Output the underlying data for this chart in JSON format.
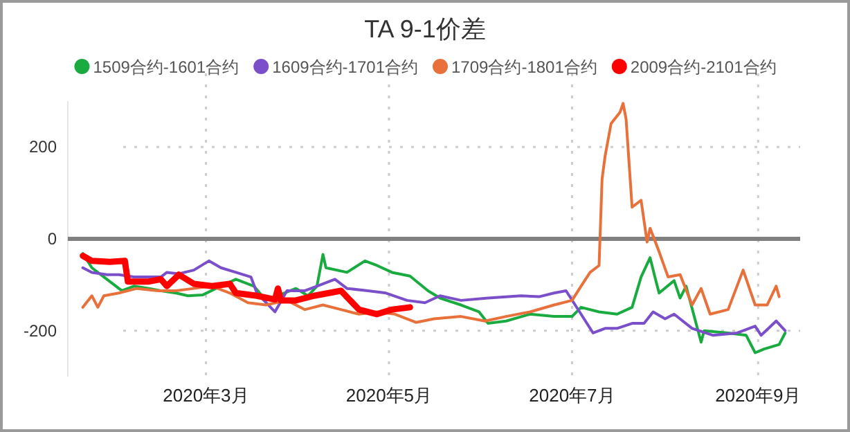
{
  "chart_data": {
    "type": "line",
    "title": "TA 9-1价差",
    "legend": "top",
    "grid": true,
    "xlim": [
      "2020-01-15",
      "2020-09-15"
    ],
    "xticks": [
      {
        "value": "2020-03-01",
        "label": "2020年3月"
      },
      {
        "value": "2020-05-01",
        "label": "2020年5月"
      },
      {
        "value": "2020-07-01",
        "label": "2020年7月"
      },
      {
        "value": "2020-09-01",
        "label": "2020年9月"
      }
    ],
    "ylim": [
      -300,
      300
    ],
    "yticks": [
      -200,
      0,
      200
    ],
    "ref_lines": [
      {
        "axis": "y",
        "value": 0,
        "label": null,
        "color": "#808080"
      }
    ],
    "series": [
      {
        "name": "1509合约-1601合约",
        "color": "#1aab40",
        "x": [
          "2020-01-20",
          "2020-01-23",
          "2020-01-28",
          "2020-02-02",
          "2020-02-06",
          "2020-02-11",
          "2020-02-15",
          "2020-02-20",
          "2020-02-24",
          "2020-02-29",
          "2020-03-06",
          "2020-03-11",
          "2020-03-17",
          "2020-03-21",
          "2020-03-31",
          "2020-04-04",
          "2020-04-07",
          "2020-04-09",
          "2020-04-10",
          "2020-04-17",
          "2020-04-23",
          "2020-04-27",
          "2020-05-02",
          "2020-05-08",
          "2020-05-14",
          "2020-05-18",
          "2020-05-25",
          "2020-05-31",
          "2020-06-03",
          "2020-06-09",
          "2020-06-17",
          "2020-06-25",
          "2020-07-01",
          "2020-07-04",
          "2020-07-10",
          "2020-07-16",
          "2020-07-21",
          "2020-07-24",
          "2020-07-27",
          "2020-07-29",
          "2020-07-30",
          "2020-08-04",
          "2020-08-06",
          "2020-08-08",
          "2020-08-13",
          "2020-08-14",
          "2020-08-22",
          "2020-08-28",
          "2020-08-31",
          "2020-09-03",
          "2020-09-08",
          "2020-09-10"
        ],
        "values": [
          -32,
          -63,
          -88,
          -113,
          -103,
          -108,
          -113,
          -118,
          -124,
          -122,
          -103,
          -88,
          -103,
          -134,
          -108,
          -124,
          -103,
          -34,
          -63,
          -73,
          -48,
          -58,
          -73,
          -81,
          -113,
          -129,
          -144,
          -159,
          -184,
          -179,
          -164,
          -169,
          -169,
          -149,
          -159,
          -164,
          -149,
          -83,
          -41,
          -93,
          -118,
          -91,
          -129,
          -103,
          -225,
          -200,
          -205,
          -210,
          -248,
          -240,
          -230,
          -205
        ]
      },
      {
        "name": "1609合约-1701合约",
        "color": "#7b4fc9",
        "x": [
          "2020-01-20",
          "2020-01-23",
          "2020-01-28",
          "2020-02-01",
          "2020-02-06",
          "2020-02-15",
          "2020-02-17",
          "2020-02-21",
          "2020-02-26",
          "2020-03-02",
          "2020-03-06",
          "2020-03-11",
          "2020-03-16",
          "2020-03-18",
          "2020-03-24",
          "2020-03-28",
          "2020-04-03",
          "2020-04-07",
          "2020-04-13",
          "2020-04-17",
          "2020-04-24",
          "2020-04-30",
          "2020-05-07",
          "2020-05-13",
          "2020-05-18",
          "2020-05-25",
          "2020-06-03",
          "2020-06-14",
          "2020-06-20",
          "2020-06-25",
          "2020-06-29",
          "2020-07-04",
          "2020-07-08",
          "2020-07-12",
          "2020-07-16",
          "2020-07-21",
          "2020-07-25",
          "2020-07-28",
          "2020-08-01",
          "2020-08-04",
          "2020-08-10",
          "2020-08-17",
          "2020-08-25",
          "2020-08-31",
          "2020-09-02",
          "2020-09-07",
          "2020-09-10"
        ],
        "values": [
          -63,
          -73,
          -78,
          -78,
          -83,
          -83,
          -73,
          -76,
          -68,
          -48,
          -63,
          -73,
          -83,
          -118,
          -159,
          -113,
          -113,
          -103,
          -88,
          -108,
          -113,
          -118,
          -134,
          -139,
          -124,
          -134,
          -129,
          -124,
          -126,
          -118,
          -113,
          -164,
          -205,
          -195,
          -195,
          -184,
          -184,
          -159,
          -174,
          -164,
          -195,
          -210,
          -205,
          -190,
          -210,
          -179,
          -200
        ]
      },
      {
        "name": "1709合约-1801合约",
        "color": "#e8703a",
        "x": [
          "2020-01-20",
          "2020-01-23",
          "2020-01-25",
          "2020-01-27",
          "2020-02-01",
          "2020-02-07",
          "2020-02-14",
          "2020-02-20",
          "2020-02-26",
          "2020-03-03",
          "2020-03-09",
          "2020-03-15",
          "2020-03-21",
          "2020-03-28",
          "2020-04-03",
          "2020-04-09",
          "2020-04-15",
          "2020-04-21",
          "2020-04-27",
          "2020-05-03",
          "2020-05-10",
          "2020-05-16",
          "2020-05-25",
          "2020-06-02",
          "2020-06-09",
          "2020-06-17",
          "2020-06-25",
          "2020-07-01",
          "2020-07-04",
          "2020-07-07",
          "2020-07-10",
          "2020-07-11",
          "2020-07-12",
          "2020-07-14",
          "2020-07-17",
          "2020-07-18",
          "2020-07-19",
          "2020-07-21",
          "2020-07-24",
          "2020-07-26",
          "2020-07-27",
          "2020-07-30",
          "2020-08-02",
          "2020-08-06",
          "2020-08-10",
          "2020-08-13",
          "2020-08-16",
          "2020-08-22",
          "2020-08-27",
          "2020-08-31",
          "2020-09-04",
          "2020-09-07",
          "2020-09-08"
        ],
        "values": [
          -149,
          -124,
          -149,
          -124,
          -118,
          -108,
          -113,
          -113,
          -108,
          -103,
          -118,
          -139,
          -144,
          -134,
          -154,
          -144,
          -154,
          -164,
          -159,
          -164,
          -182,
          -174,
          -169,
          -179,
          -169,
          -159,
          -144,
          -134,
          -103,
          -73,
          -58,
          130,
          180,
          251,
          276,
          295,
          261,
          69,
          84,
          -7,
          23,
          -28,
          -83,
          -78,
          -144,
          -108,
          -164,
          -154,
          -68,
          -144,
          -144,
          -103,
          -126
        ]
      },
      {
        "name": "2009合约-2101合约",
        "color": "#ff0000",
        "x": [
          "2020-01-20",
          "2020-01-23",
          "2020-01-29",
          "2020-02-03",
          "2020-02-04",
          "2020-02-11",
          "2020-02-15",
          "2020-02-17",
          "2020-02-21",
          "2020-02-26",
          "2020-03-03",
          "2020-03-09",
          "2020-03-11",
          "2020-03-18",
          "2020-03-24",
          "2020-03-25",
          "2020-03-26",
          "2020-03-31",
          "2020-04-06",
          "2020-04-15",
          "2020-04-21",
          "2020-04-27",
          "2020-05-02",
          "2020-05-08"
        ],
        "values": [
          -37,
          -48,
          -50,
          -48,
          -93,
          -93,
          -88,
          -103,
          -78,
          -98,
          -103,
          -98,
          -118,
          -124,
          -132,
          -108,
          -134,
          -134,
          -124,
          -113,
          -154,
          -164,
          -154,
          -149
        ]
      }
    ]
  }
}
